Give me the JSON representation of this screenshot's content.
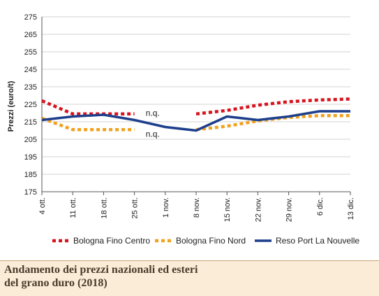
{
  "chart_data": {
    "type": "line",
    "ylabel": "Prezzi (euro/t)",
    "ylim": [
      175,
      275
    ],
    "yticks": [
      175,
      185,
      195,
      205,
      215,
      225,
      235,
      245,
      255,
      265,
      275
    ],
    "categories": [
      "4 ott.",
      "11 ott.",
      "18 ott.",
      "25 ott.",
      "1 nov.",
      "8 nov.",
      "15 nov.",
      "22 nov.",
      "29 nov.",
      "6 dic.",
      "13 dic."
    ],
    "grid": "horizontal",
    "legend_position": "bottom",
    "series": [
      {
        "name": "Bologna Fino Centro",
        "color": "#d7141e",
        "style": "dotted",
        "values": [
          227,
          219.5,
          219.5,
          219.5,
          null,
          219.5,
          221.5,
          224.5,
          226.5,
          227.5,
          228
        ]
      },
      {
        "name": "Bologna Fino Nord",
        "color": "#f0a21e",
        "style": "dotted",
        "values": [
          217,
          210.5,
          210.5,
          210.5,
          null,
          210.5,
          212.5,
          215.5,
          217.5,
          218.5,
          218.5
        ]
      },
      {
        "name": "Reso Port La Nouvelle",
        "color": "#1e3f8c",
        "style": "solid",
        "values": [
          216,
          218,
          219,
          216,
          212,
          210,
          218,
          216,
          218,
          221,
          221
        ]
      }
    ],
    "annotations": [
      {
        "text": "n.q.",
        "x": "1 nov.",
        "y": 220
      },
      {
        "text": "n.q.",
        "x": "1 nov.",
        "y": 208
      }
    ]
  },
  "caption": {
    "line1": "Andamento dei prezzi nazionali ed esteri",
    "line2": "del grano duro (2018)"
  }
}
